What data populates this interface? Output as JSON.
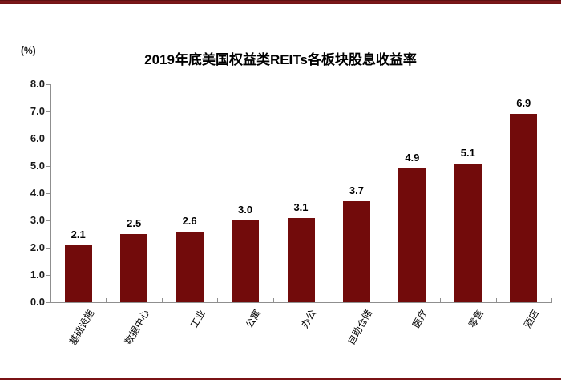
{
  "header": {
    "unit_label": "(%)"
  },
  "chart_data": {
    "type": "bar",
    "title": "2019年底美国权益类REITs各板块股息收益率",
    "unit_label": "(%)",
    "categories": [
      "基础设施",
      "数据中心",
      "工业",
      "公寓",
      "办公",
      "自助仓储",
      "医疗",
      "零售",
      "酒店"
    ],
    "values": [
      2.1,
      2.5,
      2.6,
      3.0,
      3.1,
      3.7,
      4.9,
      5.1,
      6.9
    ],
    "value_labels": [
      "2.1",
      "2.5",
      "2.6",
      "3.0",
      "3.1",
      "3.7",
      "4.9",
      "5.1",
      "6.9"
    ],
    "xlabel": "",
    "ylabel": "(%)",
    "ylim": [
      0,
      8
    ],
    "yticks": [
      0,
      1,
      2,
      3,
      4,
      5,
      6,
      7,
      8
    ],
    "ytick_labels": [
      "0.0",
      "1.0",
      "2.0",
      "3.0",
      "4.0",
      "5.0",
      "6.0",
      "7.0",
      "8.0"
    ],
    "grid": false,
    "legend": false,
    "label_rotation_deg": -60,
    "colors": {
      "bar": "#720b0b",
      "axis": "#8f8f8f",
      "accent_band": "#7a1315",
      "text": "#000000"
    }
  }
}
